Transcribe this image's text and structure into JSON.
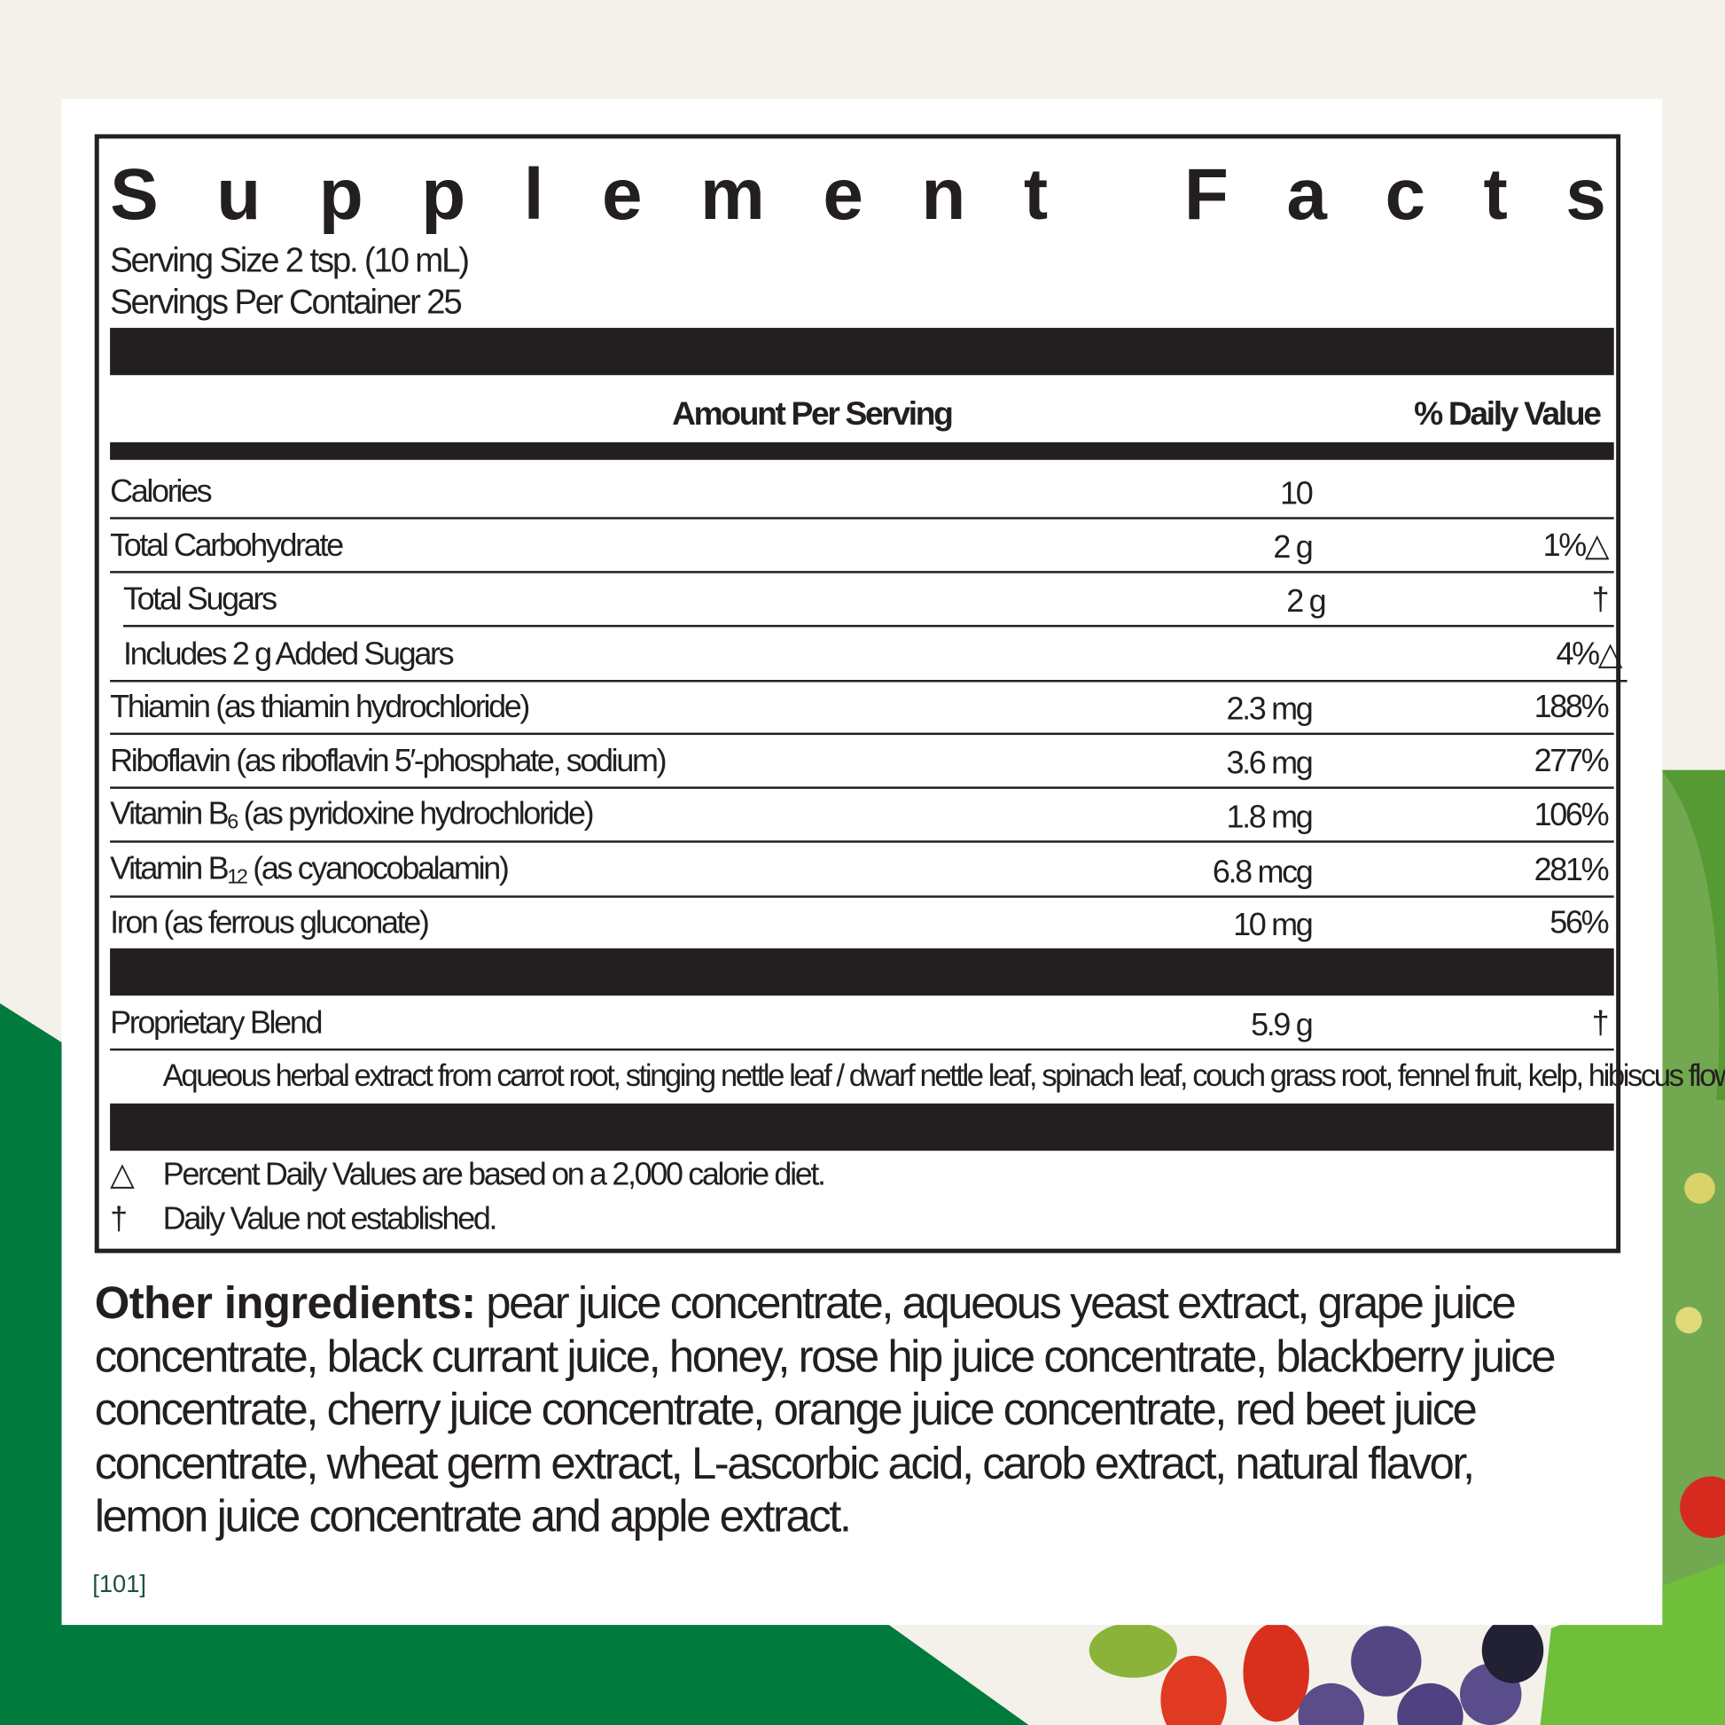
{
  "colors": {
    "background": "#f3f1ea",
    "brand_green": "#007a3d",
    "text": "#231f20"
  },
  "label": {
    "title_letters": [
      "S",
      "u",
      "p",
      "p",
      "l",
      "e",
      "m",
      "e",
      "n",
      "t",
      " ",
      "F",
      "a",
      "c",
      "t",
      "s"
    ],
    "title": "Supplement Facts",
    "serving_size": "Serving Size 2 tsp. (10 mL)",
    "servings_per_container": "Servings Per Container 25",
    "col_amount": "Amount Per Serving",
    "col_dv": "% Daily Value",
    "rows": [
      {
        "label": "Calories",
        "amount": "10",
        "dv": ""
      },
      {
        "label": "Total Carbohydrate",
        "amount": "2 g",
        "dv": "1%△"
      },
      {
        "label": "Total Sugars",
        "amount": "2 g",
        "dv": "†"
      },
      {
        "label": "Includes 2 g Added Sugars",
        "amount": "",
        "dv": "4%△"
      },
      {
        "label": "Thiamin (as thiamin hydrochloride)",
        "amount": "2.3 mg",
        "dv": "188%"
      },
      {
        "label": "Riboflavin (as riboflavin 5′-phosphate, sodium)",
        "amount": "3.6 mg",
        "dv": "277%"
      },
      {
        "label_pre": "Vitamin B",
        "label_sub": "6",
        "label_post": " (as pyridoxine hydrochloride)",
        "amount": "1.8 mg",
        "dv": "106%"
      },
      {
        "label_pre": "Vitamin B",
        "label_sub": "12",
        "label_post": " (as cyanocobalamin)",
        "amount": "6.8 mcg",
        "dv": "281%"
      },
      {
        "label": "Iron (as ferrous gluconate)",
        "amount": "10 mg",
        "dv": "56%"
      }
    ],
    "blend": {
      "label": "Proprietary Blend",
      "amount": "5.9 g",
      "dv": "†",
      "contents": "Aqueous herbal extract from carrot root, stinging nettle leaf / dwarf nettle leaf, spinach leaf, couch grass root, fennel fruit, kelp, hibiscus flower"
    },
    "footnotes": [
      {
        "symbol": "△",
        "text": "Percent Daily Values are based on a 2,000 calorie diet."
      },
      {
        "symbol": "†",
        "text": "Daily Value not established."
      }
    ]
  },
  "other_ingredients": {
    "heading": "Other ingredients:",
    "text": " pear juice concentrate, aqueous yeast extract, grape juice concentrate, black currant juice, honey, rose hip juice concentrate, blackberry juice concentrate, cherry juice concentrate, orange juice concentrate, red beet juice concentrate, wheat germ extract, L-ascorbic acid, carob extract, natural flavor, lemon juice concentrate and apple extract."
  },
  "code": "[101]"
}
